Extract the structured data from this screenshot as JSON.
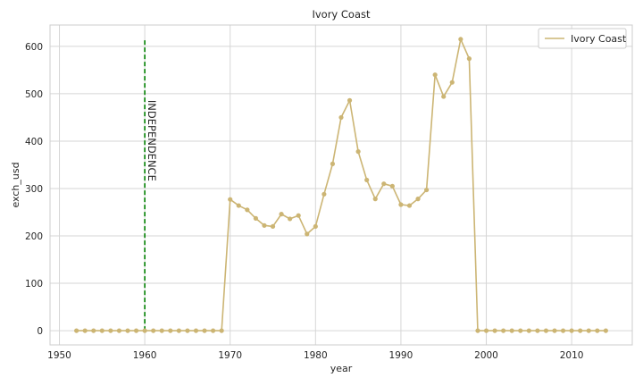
{
  "chart_data": {
    "type": "line",
    "title": "Ivory Coast",
    "xlabel": "year",
    "ylabel": "exch_usd",
    "xlim": [
      1948.9,
      2017.1
    ],
    "ylim": [
      -30,
      645
    ],
    "x_ticks": [
      1950,
      1960,
      1970,
      1980,
      1990,
      2000,
      2010
    ],
    "y_ticks": [
      0,
      100,
      200,
      300,
      400,
      500,
      600
    ],
    "grid": true,
    "legend_position": "top-right",
    "series": [
      {
        "name": "Ivory Coast",
        "color": "#ccb574",
        "marker": "circle",
        "x": [
          1952,
          1953,
          1954,
          1955,
          1956,
          1957,
          1958,
          1959,
          1960,
          1961,
          1962,
          1963,
          1964,
          1965,
          1966,
          1967,
          1968,
          1969,
          1970,
          1971,
          1972,
          1973,
          1974,
          1975,
          1976,
          1977,
          1978,
          1979,
          1980,
          1981,
          1982,
          1983,
          1984,
          1985,
          1986,
          1987,
          1988,
          1989,
          1990,
          1991,
          1992,
          1993,
          1994,
          1995,
          1996,
          1997,
          1998,
          1999,
          2000,
          2001,
          2002,
          2003,
          2004,
          2005,
          2006,
          2007,
          2008,
          2009,
          2010,
          2011,
          2012,
          2013,
          2014
        ],
        "values": [
          0,
          0,
          0,
          0,
          0,
          0,
          0,
          0,
          0,
          0,
          0,
          0,
          0,
          0,
          0,
          0,
          0,
          0,
          277,
          264,
          255,
          237,
          222,
          220,
          246,
          236,
          243,
          204,
          220,
          288,
          352,
          450,
          486,
          378,
          318,
          278,
          310,
          305,
          266,
          264,
          278,
          297,
          540,
          494,
          524,
          615,
          574,
          0,
          0,
          0,
          0,
          0,
          0,
          0,
          0,
          0,
          0,
          0,
          0,
          0,
          0,
          0,
          0
        ]
      }
    ],
    "annotations": [
      {
        "type": "vline",
        "x": 1960,
        "y_range": [
          0,
          615
        ],
        "color": "#008000",
        "style": "dashed",
        "label": "INDEPENDENCE",
        "label_y": 615,
        "label_rotation": -90
      }
    ]
  }
}
